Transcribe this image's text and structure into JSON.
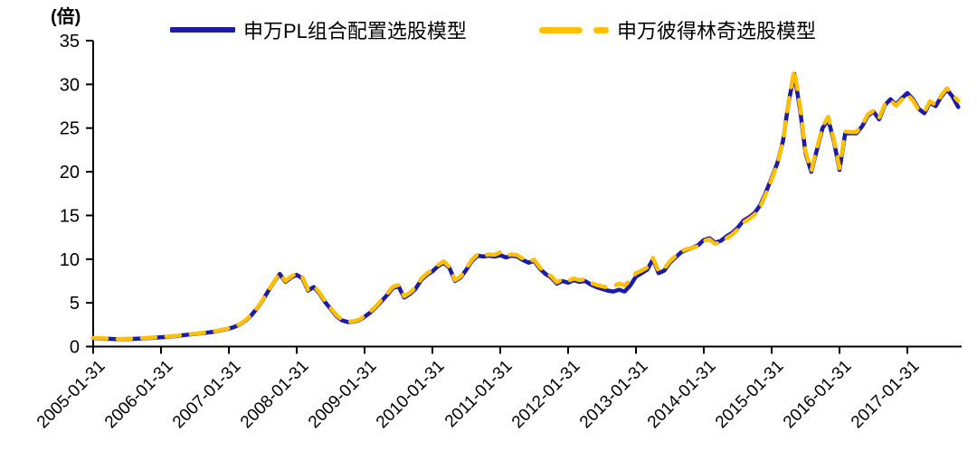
{
  "chart_data": {
    "type": "line",
    "unit_label": "(倍)",
    "ylim": [
      0,
      35
    ],
    "yticks": [
      0,
      5,
      10,
      15,
      20,
      25,
      30,
      35
    ],
    "x_tick_labels": [
      "2005-01-31",
      "2006-01-31",
      "2007-01-31",
      "2008-01-31",
      "2009-01-31",
      "2010-01-31",
      "2011-01-31",
      "2012-01-31",
      "2013-01-31",
      "2014-01-31",
      "2015-01-31",
      "2016-01-31",
      "2017-01-31"
    ],
    "x_interval": "monthly",
    "x_start": "2005-01",
    "x_end": "2017-10",
    "grid": "off",
    "legend_position": "top",
    "axis_color": "#000000",
    "series": [
      {
        "name": "申万PL组合配置选股模型",
        "color": "#1B1BA8",
        "style": "solid",
        "values": [
          0.95,
          0.93,
          0.9,
          0.88,
          0.86,
          0.84,
          0.86,
          0.88,
          0.9,
          0.93,
          0.97,
          1.02,
          1.05,
          1.1,
          1.16,
          1.22,
          1.3,
          1.38,
          1.45,
          1.52,
          1.58,
          1.66,
          1.78,
          1.92,
          2.05,
          2.25,
          2.55,
          3.0,
          3.6,
          4.4,
          5.3,
          6.4,
          7.4,
          8.3,
          7.4,
          7.9,
          8.2,
          7.8,
          6.4,
          6.8,
          6.1,
          5.1,
          4.3,
          3.5,
          3.0,
          2.8,
          2.85,
          3.0,
          3.4,
          3.9,
          4.5,
          5.2,
          5.9,
          6.7,
          6.9,
          5.6,
          6.0,
          6.6,
          7.6,
          8.2,
          8.6,
          9.2,
          9.6,
          9.0,
          7.5,
          7.9,
          8.8,
          9.8,
          10.4,
          10.3,
          10.4,
          10.3,
          10.45,
          10.2,
          10.4,
          10.3,
          9.9,
          9.6,
          9.8,
          8.9,
          8.3,
          7.9,
          7.2,
          7.5,
          7.3,
          7.6,
          7.4,
          7.5,
          7.1,
          6.8,
          6.6,
          6.4,
          6.3,
          6.5,
          6.3,
          7.0,
          8.0,
          8.4,
          8.8,
          10.0,
          8.4,
          8.7,
          9.6,
          10.2,
          10.8,
          11.1,
          11.3,
          11.6,
          12.2,
          12.4,
          11.9,
          12.1,
          12.6,
          13.0,
          13.6,
          14.4,
          14.8,
          15.3,
          16.2,
          17.7,
          19.3,
          21.0,
          23.5,
          28.0,
          31.2,
          27.2,
          22.1,
          20.0,
          22.5,
          25.0,
          26.0,
          23.5,
          20.2,
          24.4,
          24.4,
          24.4,
          25.2,
          26.4,
          26.9,
          26.0,
          27.6,
          28.3,
          27.7,
          28.4,
          29.0,
          28.3,
          27.2,
          26.7,
          27.9,
          27.5,
          28.6,
          29.4,
          28.6,
          27.4
        ]
      },
      {
        "name": "申万彼得林奇选股模型",
        "color": "#FFC000",
        "style": "dashed",
        "values": [
          0.98,
          0.96,
          0.93,
          0.91,
          0.89,
          0.87,
          0.89,
          0.91,
          0.93,
          0.96,
          1.0,
          1.05,
          1.08,
          1.13,
          1.19,
          1.25,
          1.33,
          1.41,
          1.48,
          1.55,
          1.61,
          1.69,
          1.81,
          1.95,
          2.08,
          2.28,
          2.58,
          3.05,
          3.65,
          4.45,
          5.35,
          6.45,
          7.45,
          8.4,
          7.5,
          8.0,
          8.4,
          7.95,
          6.5,
          6.95,
          6.2,
          5.2,
          4.4,
          3.6,
          3.1,
          2.85,
          2.9,
          3.05,
          3.5,
          4.0,
          4.6,
          5.35,
          6.05,
          6.85,
          7.05,
          5.75,
          6.15,
          6.75,
          7.75,
          8.35,
          8.75,
          9.35,
          9.75,
          9.1,
          7.6,
          8.0,
          8.95,
          9.95,
          10.55,
          10.4,
          10.55,
          10.5,
          10.8,
          10.4,
          10.55,
          10.45,
          10.05,
          9.75,
          9.95,
          9.05,
          8.45,
          8.05,
          7.35,
          7.7,
          7.5,
          7.8,
          7.6,
          7.7,
          7.3,
          7.05,
          6.9,
          6.75,
          6.9,
          7.2,
          7.0,
          7.6,
          8.4,
          8.7,
          9.05,
          10.15,
          8.6,
          8.9,
          9.75,
          10.35,
          10.9,
          11.15,
          11.3,
          11.5,
          12.1,
          12.25,
          11.75,
          11.95,
          12.4,
          12.8,
          13.4,
          14.2,
          14.6,
          15.1,
          16.0,
          17.55,
          19.15,
          20.9,
          23.45,
          28.1,
          31.7,
          27.6,
          22.3,
          20.1,
          22.7,
          25.2,
          26.3,
          23.7,
          20.4,
          24.6,
          24.55,
          24.55,
          25.35,
          26.55,
          27.0,
          26.15,
          27.7,
          28.2,
          27.55,
          28.25,
          28.85,
          28.15,
          27.05,
          26.85,
          28.05,
          27.65,
          28.75,
          29.55,
          28.85,
          28.1
        ]
      }
    ]
  }
}
